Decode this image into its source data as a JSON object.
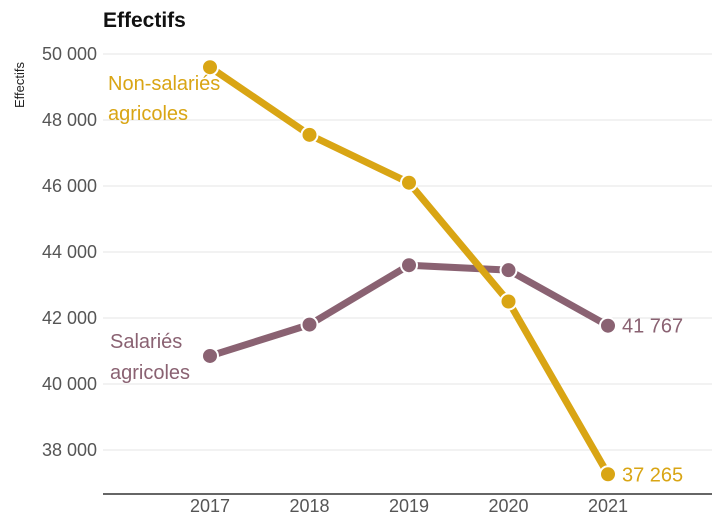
{
  "chart_data": {
    "type": "line",
    "title": "Effectifs",
    "ylabel": "Effectifs",
    "xlabel": "",
    "x": [
      "2017",
      "2018",
      "2019",
      "2020",
      "2021"
    ],
    "ylim": [
      37000,
      50000
    ],
    "yticks": [
      38000,
      40000,
      42000,
      44000,
      46000,
      48000,
      50000
    ],
    "ytick_labels": [
      "38 000",
      "40 000",
      "42 000",
      "44 000",
      "46 000",
      "48 000",
      "50 000"
    ],
    "grid": true,
    "series": [
      {
        "name": "Non-salariés agricoles",
        "label_lines": [
          "Non-salariés",
          "agricoles"
        ],
        "values": [
          49600,
          47550,
          46100,
          42500,
          37265
        ],
        "end_label": "37 265",
        "color": "#D9A514"
      },
      {
        "name": "Salariés agricoles",
        "label_lines": [
          "Salariés",
          "agricoles"
        ],
        "values": [
          40850,
          41800,
          43600,
          43450,
          41767
        ],
        "end_label": "41 767",
        "color": "#8A6272"
      }
    ]
  }
}
